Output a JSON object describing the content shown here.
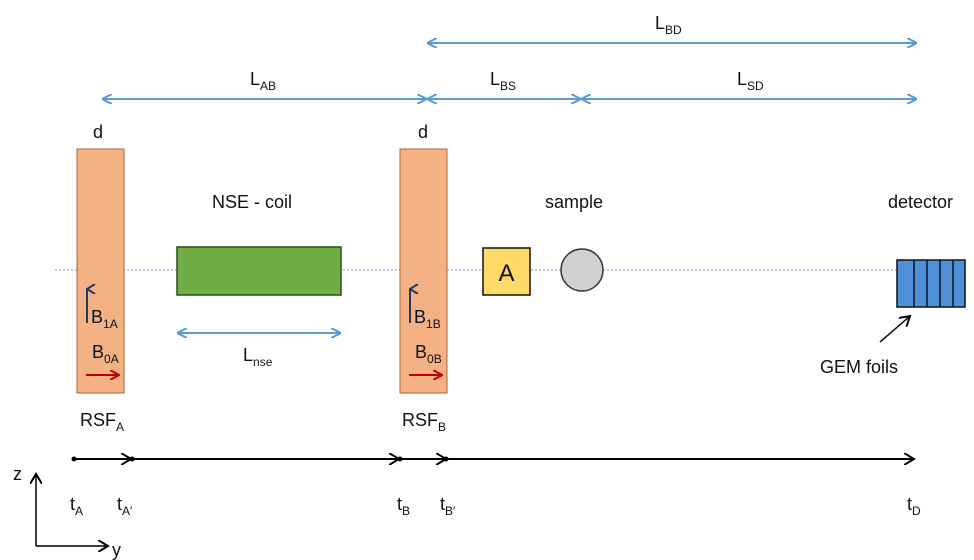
{
  "colors": {
    "dimension_arrow": "#5b9bd5",
    "rsf": "#f4b183",
    "rsf_stroke": "#a3683a",
    "nse_coil": "#70ad47",
    "analyzer": "#ffd966",
    "sample": "#d0d0d0",
    "detector": "#4f8fd8",
    "b1_arrow": "#1f3864",
    "b0_arrow": "#c00000",
    "beam_line": "#8f8fd0",
    "time_axis": "#000000"
  },
  "dimensions": {
    "bd": {
      "main": "L",
      "sub": "BD"
    },
    "ab": {
      "main": "L",
      "sub": "AB"
    },
    "bs": {
      "main": "L",
      "sub": "BS"
    },
    "sd": {
      "main": "L",
      "sub": "SD"
    },
    "nse": {
      "main": "L",
      "sub": "nse"
    }
  },
  "components": {
    "rsf_a": {
      "thickness": "d",
      "name": {
        "main": "RSF",
        "sub": "A"
      },
      "b1": {
        "main": "B",
        "sub": "1A"
      },
      "b0": {
        "main": "B",
        "sub": "0A"
      }
    },
    "rsf_b": {
      "thickness": "d",
      "name": {
        "main": "RSF",
        "sub": "B"
      },
      "b1": {
        "main": "B",
        "sub": "1B"
      },
      "b0": {
        "main": "B",
        "sub": "0B"
      }
    },
    "nse_coil": {
      "label": "NSE - coil"
    },
    "analyzer": {
      "label": "A"
    },
    "sample": {
      "label": "sample"
    },
    "detector": {
      "label": "detector",
      "foils_label": "GEM foils"
    }
  },
  "timeline": [
    {
      "main": "t",
      "sub": "A"
    },
    {
      "main": "t",
      "sub": "A′"
    },
    {
      "main": "t",
      "sub": "B"
    },
    {
      "main": "t",
      "sub": "B′"
    },
    {
      "main": "t",
      "sub": "D"
    }
  ],
  "axes": {
    "z": "z",
    "y": "y"
  }
}
